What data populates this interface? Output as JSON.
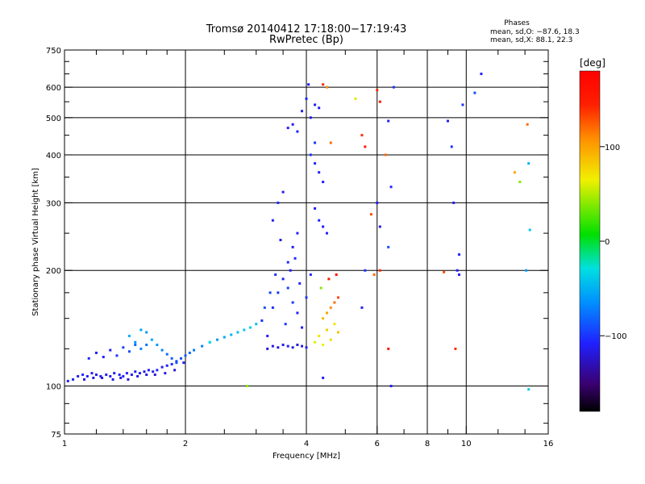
{
  "title_line1": "Tromsø 20140412 17:18:00−17:19:43",
  "title_line2": "RwPretec (Bp)",
  "phase_box": {
    "heading": "Phases",
    "line1": "mean, sd,O: −87.6, 18.3",
    "line2": "mean, sd,X:  88.1, 22.3"
  },
  "colorbar": {
    "label": "[deg]",
    "range": [
      -180,
      180
    ],
    "ticks": [
      {
        "value": 100,
        "label": "100"
      },
      {
        "value": 0,
        "label": "0"
      },
      {
        "value": -100,
        "label": "−100"
      }
    ]
  },
  "chart_data": {
    "type": "scatter",
    "xlabel": "Frequency [MHz]",
    "ylabel": "Stationary phase Virtual Height [km]",
    "xscale": "log",
    "yscale": "log",
    "xlim": [
      1,
      16
    ],
    "ylim": [
      75,
      750
    ],
    "x_ticks": [
      1,
      2,
      4,
      6,
      8,
      10,
      16
    ],
    "y_ticks": [
      75,
      100,
      200,
      300,
      400,
      500,
      600,
      750
    ],
    "x_gridlines": [
      2,
      4,
      6,
      8,
      10
    ],
    "y_gridlines": [
      100,
      200,
      300,
      400,
      500,
      600
    ],
    "minor_ticks_x": [
      1.2,
      1.4,
      1.6,
      1.8,
      2.5,
      3,
      3.5,
      5,
      7,
      9,
      12,
      14
    ],
    "minor_ticks_y": [
      80,
      90,
      125,
      150,
      175,
      250,
      350,
      450,
      550,
      650,
      700
    ],
    "points": [
      [
        1.02,
        103,
        -110
      ],
      [
        1.05,
        104,
        -108
      ],
      [
        1.08,
        106,
        -112
      ],
      [
        1.11,
        107,
        -105
      ],
      [
        1.14,
        106,
        -110
      ],
      [
        1.17,
        108,
        -108
      ],
      [
        1.2,
        107,
        -115
      ],
      [
        1.23,
        106,
        -112
      ],
      [
        1.27,
        107,
        -110
      ],
      [
        1.3,
        106,
        -108
      ],
      [
        1.33,
        108,
        -112
      ],
      [
        1.37,
        107,
        -110
      ],
      [
        1.4,
        106,
        -105
      ],
      [
        1.43,
        108,
        -110
      ],
      [
        1.47,
        107,
        -112
      ],
      [
        1.5,
        109,
        -108
      ],
      [
        1.54,
        108,
        -110
      ],
      [
        1.58,
        109,
        -112
      ],
      [
        1.62,
        110,
        -110
      ],
      [
        1.66,
        109,
        -108
      ],
      [
        1.7,
        110,
        -105
      ],
      [
        1.75,
        112,
        -110
      ],
      [
        1.8,
        113,
        -108
      ],
      [
        1.85,
        114,
        -100
      ],
      [
        1.9,
        116,
        -95
      ],
      [
        1.95,
        118,
        -90
      ],
      [
        2.0,
        120,
        -85
      ],
      [
        2.05,
        122,
        -80
      ],
      [
        2.1,
        124,
        -75
      ],
      [
        2.2,
        127,
        -70
      ],
      [
        2.3,
        130,
        -65
      ],
      [
        2.4,
        132,
        -60
      ],
      [
        2.5,
        134,
        -55
      ],
      [
        2.6,
        136,
        -50
      ],
      [
        2.7,
        138,
        -45
      ],
      [
        2.8,
        140,
        -40
      ],
      [
        2.9,
        142,
        -38
      ],
      [
        3.0,
        145,
        -45
      ],
      [
        1.15,
        118,
        -105
      ],
      [
        1.2,
        122,
        -110
      ],
      [
        1.25,
        119,
        -108
      ],
      [
        1.3,
        124,
        -112
      ],
      [
        1.35,
        120,
        -100
      ],
      [
        1.4,
        126,
        -95
      ],
      [
        1.45,
        123,
        -90
      ],
      [
        1.5,
        128,
        -80
      ],
      [
        1.55,
        125,
        -70
      ],
      [
        1.6,
        138,
        -60
      ],
      [
        1.65,
        132,
        -55
      ],
      [
        1.7,
        128,
        -60
      ],
      [
        1.75,
        124,
        -70
      ],
      [
        1.8,
        121,
        -80
      ],
      [
        1.85,
        118,
        -85
      ],
      [
        1.9,
        115,
        -90
      ],
      [
        1.5,
        130,
        -65
      ],
      [
        1.45,
        135,
        -50
      ],
      [
        1.55,
        140,
        -55
      ],
      [
        1.6,
        128,
        -75
      ],
      [
        1.12,
        104,
        -120
      ],
      [
        1.18,
        105,
        -118
      ],
      [
        1.24,
        105,
        -122
      ],
      [
        1.32,
        104,
        -115
      ],
      [
        1.38,
        105,
        -118
      ],
      [
        1.44,
        104,
        -120
      ],
      [
        1.52,
        106,
        -115
      ],
      [
        1.6,
        107,
        -118
      ],
      [
        1.68,
        107,
        -120
      ],
      [
        1.78,
        108,
        -115
      ],
      [
        1.88,
        110,
        -118
      ],
      [
        1.98,
        115,
        -110
      ],
      [
        3.1,
        148,
        -100
      ],
      [
        3.2,
        135,
        -110
      ],
      [
        3.3,
        160,
        -105
      ],
      [
        3.4,
        175,
        -100
      ],
      [
        3.5,
        190,
        -110
      ],
      [
        3.6,
        210,
        -105
      ],
      [
        3.7,
        230,
        -112
      ],
      [
        3.8,
        250,
        -108
      ],
      [
        3.3,
        270,
        -110
      ],
      [
        3.4,
        300,
        -105
      ],
      [
        3.5,
        320,
        -115
      ],
      [
        3.6,
        180,
        -95
      ],
      [
        3.7,
        165,
        -100
      ],
      [
        3.8,
        155,
        -108
      ],
      [
        3.9,
        142,
        -110
      ],
      [
        4.0,
        170,
        -100
      ],
      [
        4.1,
        195,
        -105
      ],
      [
        3.2,
        125,
        -115
      ],
      [
        3.3,
        127,
        -118
      ],
      [
        3.4,
        126,
        -120
      ],
      [
        3.5,
        128,
        -112
      ],
      [
        3.6,
        127,
        -110
      ],
      [
        3.7,
        126,
        -115
      ],
      [
        3.8,
        128,
        -118
      ],
      [
        3.9,
        127,
        -112
      ],
      [
        4.0,
        126,
        -110
      ],
      [
        3.55,
        145,
        -100
      ],
      [
        3.65,
        200,
        -110
      ],
      [
        3.75,
        215,
        -105
      ],
      [
        3.85,
        185,
        -108
      ],
      [
        3.45,
        240,
        -112
      ],
      [
        3.35,
        195,
        -100
      ],
      [
        3.25,
        175,
        -95
      ],
      [
        3.15,
        160,
        -90
      ],
      [
        4.2,
        130,
        60
      ],
      [
        4.3,
        135,
        70
      ],
      [
        4.4,
        128,
        65
      ],
      [
        4.5,
        140,
        80
      ],
      [
        4.6,
        132,
        75
      ],
      [
        4.7,
        145,
        70
      ],
      [
        4.8,
        138,
        85
      ],
      [
        4.4,
        150,
        90
      ],
      [
        4.5,
        155,
        100
      ],
      [
        4.6,
        160,
        110
      ],
      [
        4.7,
        165,
        120
      ],
      [
        4.8,
        170,
        130
      ],
      [
        4.35,
        180,
        40
      ],
      [
        4.55,
        190,
        150
      ],
      [
        4.75,
        195,
        160
      ],
      [
        3.6,
        470,
        -110
      ],
      [
        3.7,
        480,
        -115
      ],
      [
        3.8,
        460,
        -108
      ],
      [
        3.9,
        520,
        -112
      ],
      [
        4.0,
        560,
        -105
      ],
      [
        4.05,
        610,
        -110
      ],
      [
        4.1,
        500,
        -115
      ],
      [
        4.2,
        540,
        -108
      ],
      [
        4.3,
        530,
        -112
      ],
      [
        4.1,
        400,
        -100
      ],
      [
        4.2,
        380,
        -105
      ],
      [
        4.3,
        360,
        -110
      ],
      [
        4.4,
        340,
        -108
      ],
      [
        4.2,
        290,
        -110
      ],
      [
        4.3,
        270,
        -105
      ],
      [
        4.4,
        260,
        -112
      ],
      [
        4.5,
        250,
        -108
      ],
      [
        4.6,
        430,
        120
      ],
      [
        4.5,
        600,
        110
      ],
      [
        4.4,
        610,
        140
      ],
      [
        5.5,
        450,
        140
      ],
      [
        5.6,
        420,
        150
      ],
      [
        5.8,
        280,
        130
      ],
      [
        6.0,
        590,
        140
      ],
      [
        6.1,
        550,
        150
      ],
      [
        6.3,
        400,
        120
      ],
      [
        6.4,
        490,
        -110
      ],
      [
        6.5,
        330,
        -105
      ],
      [
        6.6,
        600,
        -100
      ],
      [
        6.0,
        300,
        -110
      ],
      [
        6.1,
        260,
        -115
      ],
      [
        5.3,
        560,
        60
      ],
      [
        5.5,
        160,
        -110
      ],
      [
        5.6,
        200,
        -100
      ],
      [
        5.9,
        195,
        120
      ],
      [
        6.1,
        200,
        140
      ],
      [
        6.4,
        230,
        -90
      ],
      [
        6.5,
        100,
        -110
      ],
      [
        6.4,
        125,
        150
      ],
      [
        4.2,
        430,
        -100
      ],
      [
        4.4,
        105,
        -110
      ],
      [
        9.0,
        490,
        -110
      ],
      [
        9.2,
        420,
        -100
      ],
      [
        9.5,
        200,
        -110
      ],
      [
        9.6,
        220,
        -105
      ],
      [
        9.8,
        540,
        -100
      ],
      [
        10.5,
        580,
        -90
      ],
      [
        10.9,
        650,
        -110
      ],
      [
        9.3,
        300,
        -110
      ],
      [
        9.4,
        125,
        140
      ],
      [
        9.6,
        195,
        -110
      ],
      [
        8.8,
        198,
        130
      ],
      [
        13.2,
        360,
        100
      ],
      [
        13.6,
        340,
        40
      ],
      [
        14.2,
        480,
        120
      ],
      [
        14.3,
        380,
        -50
      ],
      [
        14.4,
        255,
        -40
      ],
      [
        14.1,
        200,
        -60
      ],
      [
        14.3,
        98,
        -40
      ],
      [
        2.85,
        100,
        40
      ],
      [
        2.3,
        130,
        -30
      ]
    ]
  }
}
